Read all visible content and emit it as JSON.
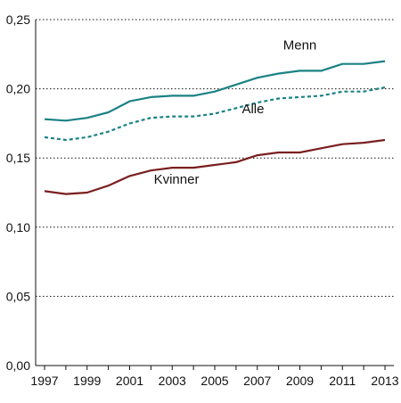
{
  "chart_data": {
    "type": "line",
    "title": "",
    "xlabel": "",
    "ylabel": "",
    "x": [
      1997,
      1998,
      1999,
      2000,
      2001,
      2002,
      2003,
      2004,
      2005,
      2006,
      2007,
      2008,
      2009,
      2010,
      2011,
      2012,
      2013
    ],
    "xticks": [
      "1997",
      "1999",
      "2001",
      "2003",
      "2005",
      "2007",
      "2009",
      "2011",
      "2013"
    ],
    "yticks": [
      "0,00",
      "0,05",
      "0,10",
      "0,15",
      "0,20",
      "0,25"
    ],
    "ylim": [
      0,
      0.25
    ],
    "grid": "horizontal dotted",
    "legend": "inline labels",
    "series": [
      {
        "name": "Menn",
        "color": "#1b8285",
        "style": "solid",
        "values": [
          0.178,
          0.177,
          0.179,
          0.183,
          0.191,
          0.194,
          0.195,
          0.195,
          0.198,
          0.203,
          0.208,
          0.211,
          0.213,
          0.213,
          0.218,
          0.218,
          0.22
        ]
      },
      {
        "name": "Alle",
        "color": "#1b8285",
        "style": "dashed",
        "values": [
          0.165,
          0.163,
          0.165,
          0.169,
          0.175,
          0.179,
          0.18,
          0.18,
          0.182,
          0.186,
          0.19,
          0.193,
          0.194,
          0.195,
          0.198,
          0.198,
          0.201
        ]
      },
      {
        "name": "Kvinner",
        "color": "#7a1f1f",
        "style": "solid",
        "values": [
          0.126,
          0.124,
          0.125,
          0.13,
          0.137,
          0.141,
          0.143,
          0.143,
          0.145,
          0.147,
          0.152,
          0.154,
          0.154,
          0.157,
          0.16,
          0.161,
          0.163
        ]
      }
    ]
  }
}
